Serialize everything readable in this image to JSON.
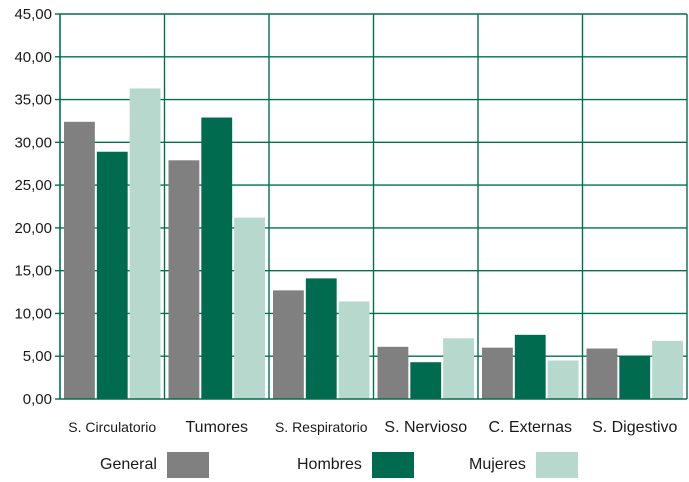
{
  "chart_data": {
    "type": "bar",
    "categories": [
      "S. Circulatorio",
      "Tumores",
      "S. Respiratorio",
      "S. Nervioso",
      "C. Externas",
      "S. Digestivo"
    ],
    "series": [
      {
        "name": "General",
        "color": "#808080",
        "values": [
          32.4,
          27.9,
          12.7,
          6.1,
          6.0,
          5.9
        ]
      },
      {
        "name": "Hombres",
        "color": "#006b4f",
        "values": [
          28.9,
          32.9,
          14.1,
          4.3,
          7.5,
          5.0
        ]
      },
      {
        "name": "Mujeres",
        "color": "#b7d8cc",
        "values": [
          36.3,
          21.2,
          11.4,
          7.1,
          4.5,
          6.8
        ]
      }
    ],
    "ylim": [
      0,
      45
    ],
    "yticks": [
      "0,00",
      "5,00",
      "10,00",
      "15,00",
      "20,00",
      "25,00",
      "30,00",
      "35,00",
      "40,00",
      "45,00"
    ],
    "grid": true,
    "legend_position": "bottom",
    "axis_color": "#00704f"
  }
}
